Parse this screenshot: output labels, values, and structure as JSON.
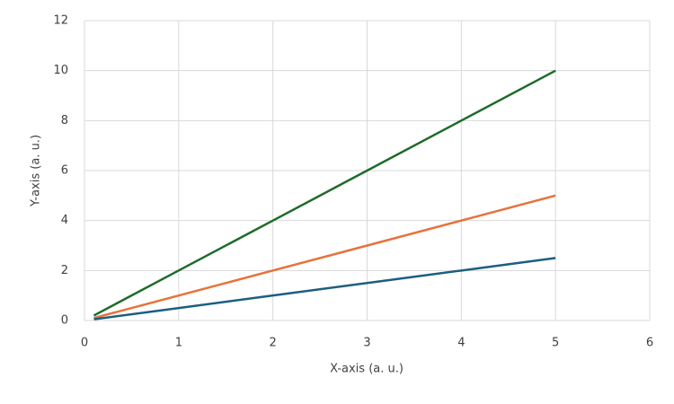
{
  "chart_data": {
    "type": "line",
    "x_label": "X-axis (a. u.)",
    "y_label": "Y-axis (a. u.)",
    "x": [
      0.1,
      1,
      2,
      3,
      4,
      5
    ],
    "series": [
      {
        "color": "#1e6b2a",
        "values": [
          0.2,
          2,
          4,
          6,
          8,
          10
        ]
      },
      {
        "color": "#e8713a",
        "values": [
          0.1,
          1,
          2,
          3,
          4,
          5
        ]
      },
      {
        "color": "#1c5f80",
        "values": [
          0.05,
          0.5,
          1,
          1.5,
          2,
          2.5
        ]
      }
    ],
    "xlim": [
      0,
      6
    ],
    "xticks": [
      0,
      1,
      2,
      3,
      4,
      5,
      6
    ],
    "ylim": [
      0,
      12
    ],
    "yticks": [
      0,
      2,
      4,
      6,
      8,
      10,
      12
    ],
    "grid": true
  }
}
